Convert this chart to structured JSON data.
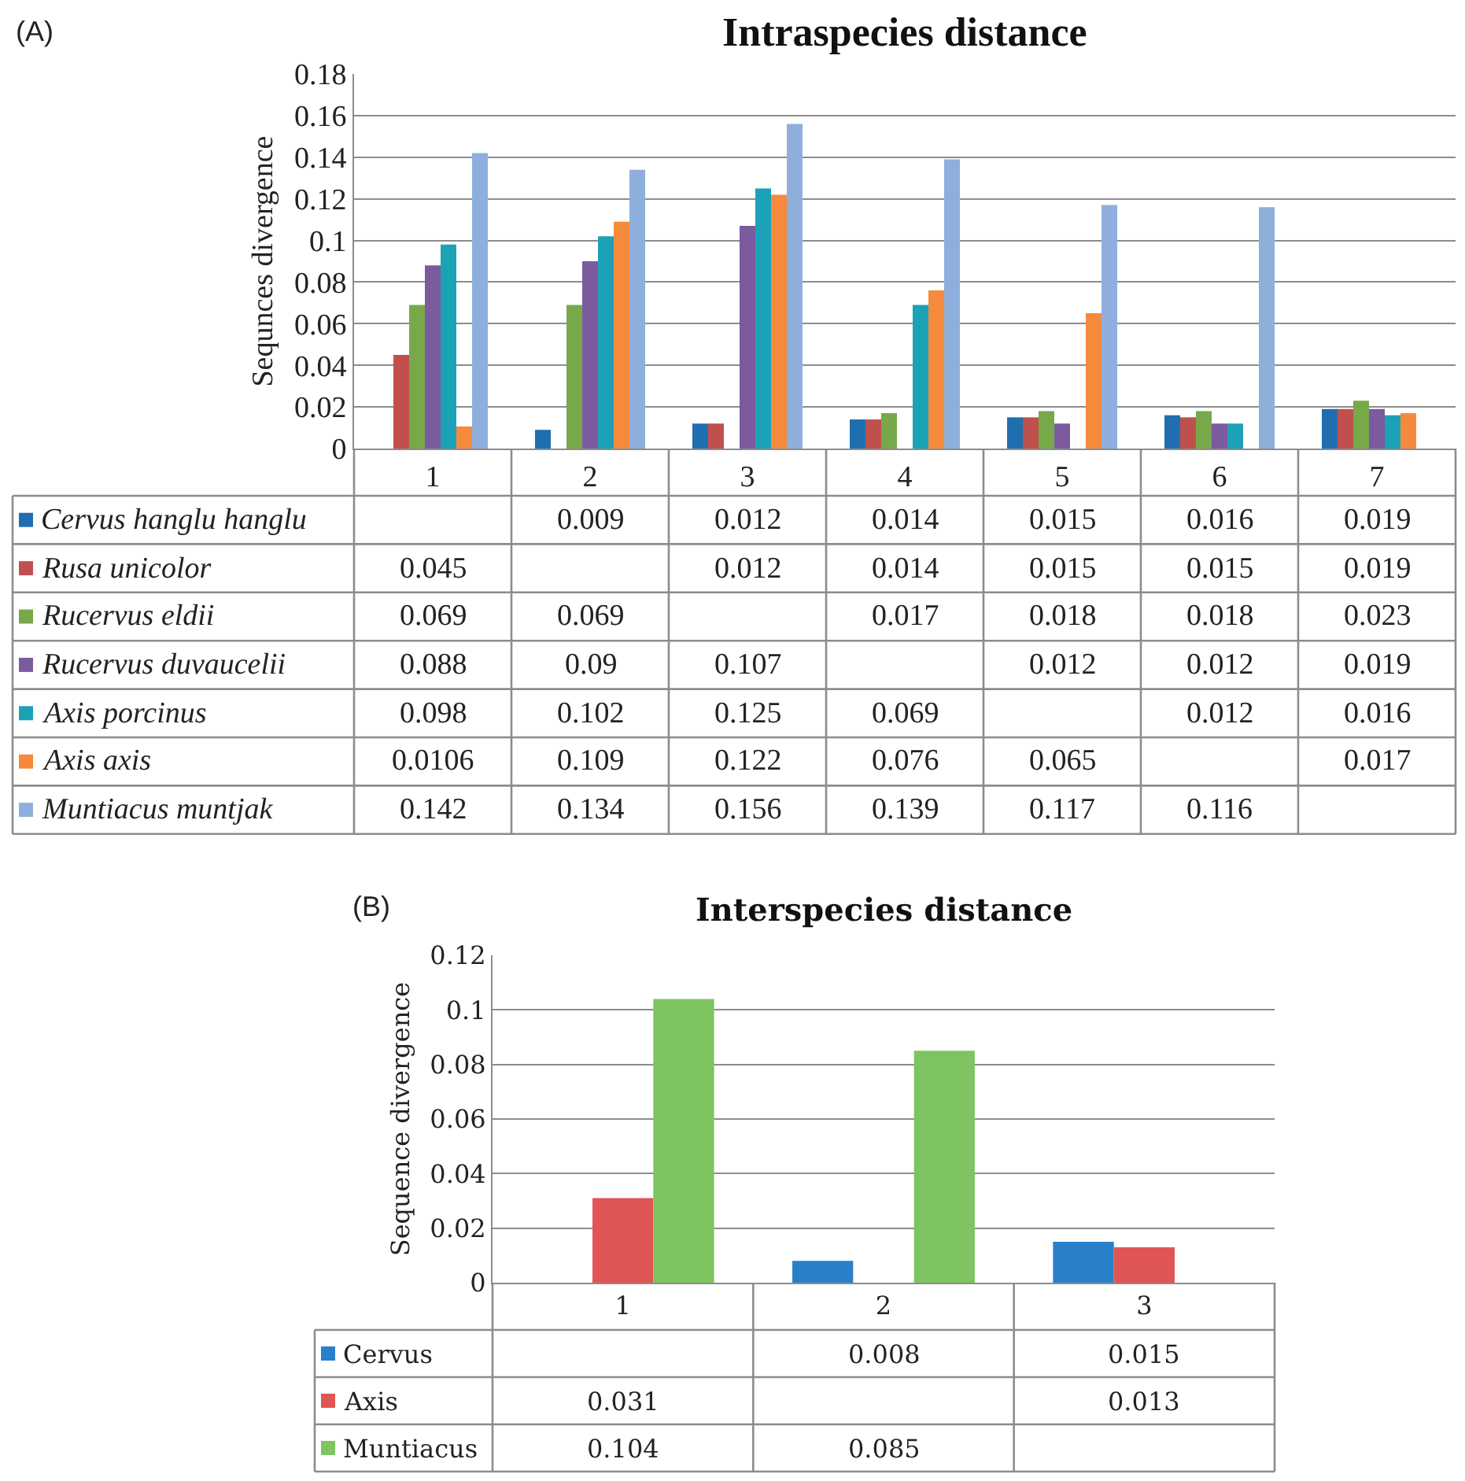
{
  "chart_data": [
    {
      "type": "bar",
      "title": "Intraspecies distance",
      "ylabel": "Sequnces divergence",
      "annotations": [
        "(A)"
      ],
      "categories": [
        "1",
        "2",
        "3",
        "4",
        "5",
        "6",
        "7"
      ],
      "ylim": [
        0,
        0.18
      ],
      "yticks": [
        0,
        0.02,
        0.04,
        0.06,
        0.08,
        {
          "value": 0.1,
          "label": "0.1"
        },
        0.12,
        0.14,
        0.16,
        0.18
      ],
      "grid": "y",
      "legend": "bottom",
      "data_labels": true,
      "series": [
        {
          "name": "Cervus hanglu hanglu",
          "color": "#1f6fb0",
          "values": [
            null,
            0.009,
            0.012,
            0.014,
            0.015,
            0.016,
            0.019
          ]
        },
        {
          "name": "Rusa unicolor",
          "color": "#c0504d",
          "values": [
            0.045,
            null,
            0.012,
            0.014,
            0.015,
            0.015,
            0.019
          ]
        },
        {
          "name": "Rucervus eldii",
          "color": "#77a94a",
          "values": [
            0.069,
            0.069,
            null,
            0.017,
            0.018,
            0.018,
            0.023
          ]
        },
        {
          "name": "Rucervus duvaucelii",
          "color": "#7b5a9e",
          "values": [
            0.088,
            0.09,
            0.107,
            null,
            0.012,
            0.012,
            0.019
          ]
        },
        {
          "name": "Axis porcinus",
          "color": "#1ba2b6",
          "values": [
            0.098,
            0.102,
            0.125,
            0.069,
            null,
            0.012,
            0.016
          ]
        },
        {
          "name": "Axis axis",
          "color": "#f58a3c",
          "values": [
            0.0106,
            0.109,
            0.122,
            0.076,
            0.065,
            null,
            0.017
          ]
        },
        {
          "name": "Muntiacus muntjak",
          "color": "#8eafdb",
          "values": [
            0.142,
            0.134,
            0.156,
            0.139,
            0.117,
            0.116,
            null
          ]
        }
      ]
    },
    {
      "type": "bar",
      "title": "Interspecies distance",
      "ylabel": "Sequence divergence",
      "annotations": [
        "(B)"
      ],
      "categories": [
        "1",
        "2",
        "3"
      ],
      "ylim": [
        0,
        0.12
      ],
      "yticks": [
        0,
        0.02,
        0.04,
        0.06,
        0.08,
        {
          "value": 0.1,
          "label": "0.1"
        },
        0.12
      ],
      "grid": "y",
      "legend": "bottom",
      "data_labels": true,
      "series": [
        {
          "name": "Cervus",
          "color": "#2a7fcb",
          "values": [
            null,
            0.008,
            0.015
          ]
        },
        {
          "name": "Axis",
          "color": "#e05555",
          "values": [
            0.031,
            null,
            0.013
          ]
        },
        {
          "name": "Muntiacus",
          "color": "#7ec460",
          "values": [
            0.104,
            0.085,
            null
          ]
        }
      ]
    }
  ]
}
